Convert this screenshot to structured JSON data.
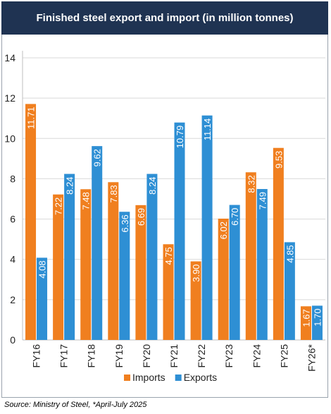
{
  "title": "Finished steel export and import (in million tonnes)",
  "source": "Source: Ministry of Steel, *April-July 2025",
  "colors": {
    "imports": "#f07f1f",
    "exports": "#2e8fd4",
    "header_bg": "#1f3352",
    "grid": "#d9d9d9"
  },
  "chart_data": {
    "type": "bar",
    "title": "Finished steel export and import (in million tonnes)",
    "categories": [
      "FY16",
      "FY17",
      "FY18",
      "FY19",
      "FY20",
      "FY21",
      "FY22",
      "FY23",
      "FY24",
      "FY25",
      "FY26*"
    ],
    "series": [
      {
        "name": "Imports",
        "values": [
          11.71,
          7.22,
          7.48,
          7.83,
          6.69,
          4.75,
          3.9,
          6.02,
          8.32,
          9.53,
          1.67
        ]
      },
      {
        "name": "Exports",
        "values": [
          4.08,
          8.24,
          9.62,
          6.36,
          8.24,
          10.79,
          11.14,
          6.7,
          7.49,
          4.85,
          1.7
        ]
      }
    ],
    "value_labels": {
      "Imports": [
        "11.71",
        "7.22",
        "7.48",
        "7.83",
        "6.69",
        "4.75",
        "3.90",
        "6.02",
        "8.32",
        "9.53",
        "1.67"
      ],
      "Exports": [
        "4.08",
        "8.24",
        "9.62",
        "6.36",
        "8.24",
        "10.79",
        "11.14",
        "6.70",
        "7.49",
        "4.85",
        "1.70"
      ]
    },
    "ylim": [
      0,
      14
    ],
    "yticks": [
      "0",
      "2",
      "4",
      "6",
      "8",
      "10",
      "12",
      "14"
    ],
    "xlabel": "",
    "ylabel": "",
    "grid": true,
    "legend": "bottom"
  }
}
